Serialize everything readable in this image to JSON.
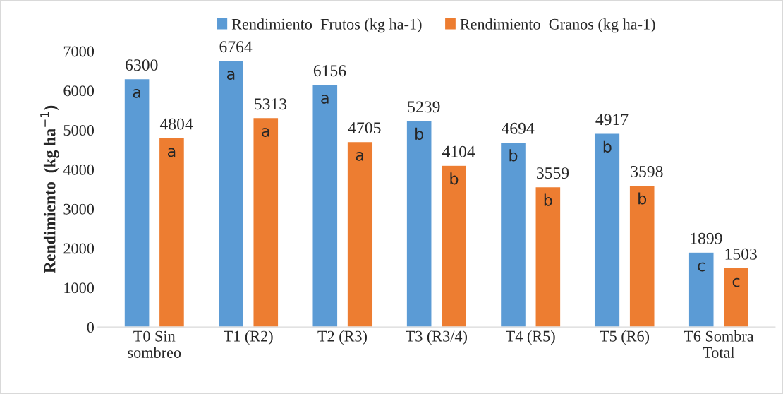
{
  "chart_data": {
    "type": "bar",
    "ylabel": "Rendimiento  (kg ha$^{−1}$)",
    "categories": [
      "T0 Sin\nsombreo",
      "T1 (R2)",
      "T2 (R3)",
      "T3 (R3/4)",
      "T4 (R5)",
      "T5 (R6)",
      "T6 Sombra\nTotal"
    ],
    "series": [
      {
        "name": "Rendimiento  Frutos (kg ha-1)",
        "color": "#5b9bd5",
        "values": [
          6300,
          6764,
          6156,
          5239,
          4694,
          4917,
          1899
        ]
      },
      {
        "name": "Rendimiento  Granos (kg ha-1)",
        "color": "#ed7d31",
        "values": [
          4804,
          5313,
          4705,
          4104,
          3559,
          3598,
          1503
        ]
      }
    ],
    "data_labels": true,
    "ylim": [
      0,
      7000
    ],
    "yticks": [
      0,
      1000,
      2000,
      3000,
      4000,
      5000,
      6000,
      7000
    ],
    "grid": false,
    "legend": "top",
    "annotations": [
      "a",
      "a",
      "a",
      "a",
      "a",
      "a",
      "b",
      "b",
      "b",
      "b",
      "b",
      "b",
      "c",
      "c"
    ]
  }
}
